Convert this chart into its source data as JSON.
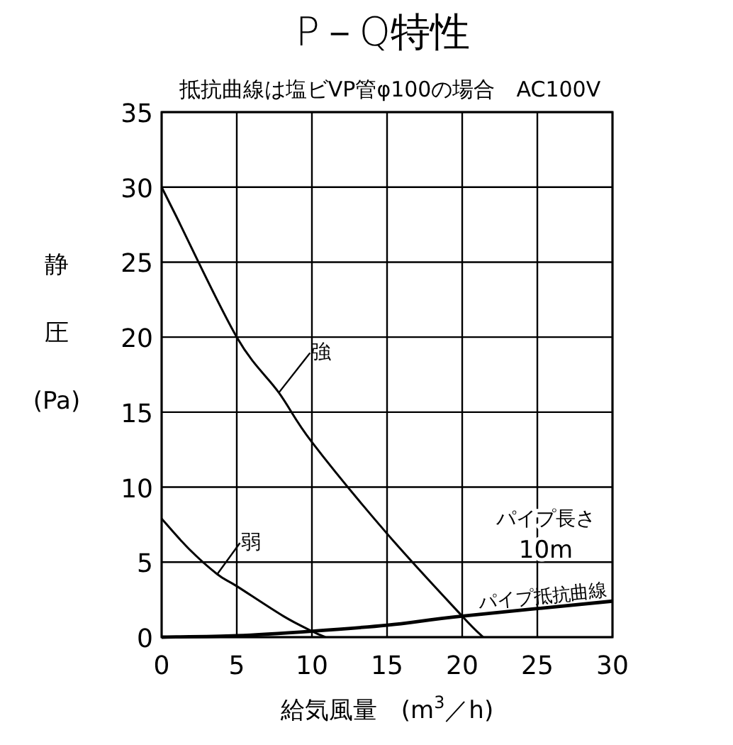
{
  "chart_data": {
    "type": "line",
    "title": "P－Q特性",
    "subtitle": "抵抗曲線は塩ビVP管φ100の場合　AC100V",
    "xlabel": "給気風量　(m$^{3}$／h)",
    "ylabel": "静圧(Pa)",
    "xlim": [
      0,
      30
    ],
    "ylim": [
      0,
      35
    ],
    "xticks": [
      0,
      5,
      10,
      15,
      20,
      25,
      30
    ],
    "yticks": [
      0,
      5,
      10,
      15,
      20,
      25,
      30,
      35
    ],
    "grid": true,
    "annotations": [
      "パイプ長さ",
      "10m"
    ],
    "series": [
      {
        "name": "強",
        "color": "#000000",
        "x": [
          0,
          0.9,
          5,
          7.8,
          10,
          15,
          20,
          21.4
        ],
        "values": [
          30,
          28.2,
          20,
          16.3,
          13,
          6.9,
          1.4,
          0
        ]
      },
      {
        "name": "弱",
        "color": "#000000",
        "x": [
          0,
          1.8,
          3.7,
          5,
          8.1,
          10,
          10.9
        ],
        "values": [
          7.9,
          5.9,
          4.2,
          3.4,
          1.4,
          0.4,
          0
        ]
      },
      {
        "name": "パイプ抵抗曲線",
        "color": "#000000",
        "x": [
          0,
          5,
          10,
          15,
          20,
          30
        ],
        "values": [
          0,
          0.1,
          0.4,
          0.8,
          1.4,
          2.4
        ]
      }
    ]
  }
}
